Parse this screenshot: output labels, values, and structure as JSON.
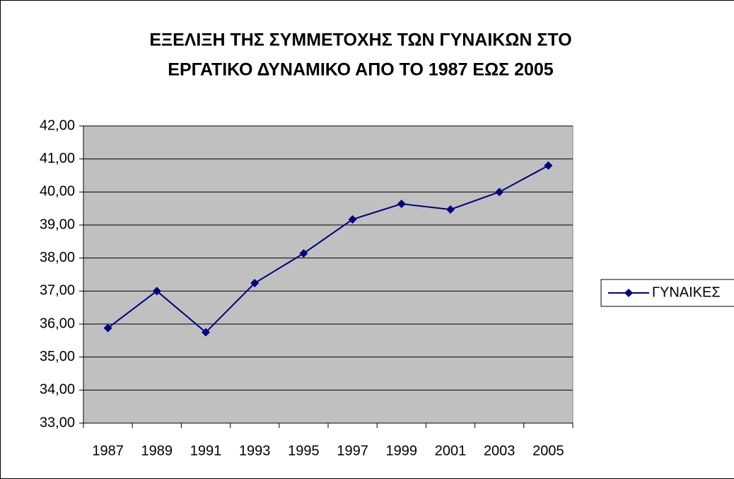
{
  "chart_data": {
    "type": "line",
    "title": [
      "ΕΞΕΛΙΞΗ ΤΗΣ ΣΥΜΜΕΤΟΧΗΣ ΤΩΝ ΓΥΝΑΙΚΩΝ ΣΤΟ",
      "ΕΡΓΑΤΙΚΟ ΔΥΝΑΜΙΚΟ ΑΠΟ ΤΟ 1987 ΕΩΣ 2005"
    ],
    "categories": [
      "1987",
      "1989",
      "1991",
      "1993",
      "1995",
      "1997",
      "1999",
      "2001",
      "2003",
      "2005"
    ],
    "series": [
      {
        "name": "ΓΥΝΑΙΚΕΣ",
        "color": "#000080",
        "values": [
          35.88,
          37.0,
          35.75,
          37.24,
          38.14,
          39.17,
          39.64,
          39.47,
          40.0,
          40.8
        ]
      }
    ],
    "ylim": [
      33,
      42
    ],
    "yticks": [
      {
        "value": 33,
        "label": "33,00"
      },
      {
        "value": 34,
        "label": "34,00"
      },
      {
        "value": 35,
        "label": "35,00"
      },
      {
        "value": 36,
        "label": "36,00"
      },
      {
        "value": 37,
        "label": "37,00"
      },
      {
        "value": 38,
        "label": "38,00"
      },
      {
        "value": 39,
        "label": "39,00"
      },
      {
        "value": 40,
        "label": "40,00"
      },
      {
        "value": 41,
        "label": "41,00"
      },
      {
        "value": 42,
        "label": "42,00"
      }
    ],
    "grid": true,
    "legend": "right",
    "plot_background": "#c0c0c0"
  }
}
